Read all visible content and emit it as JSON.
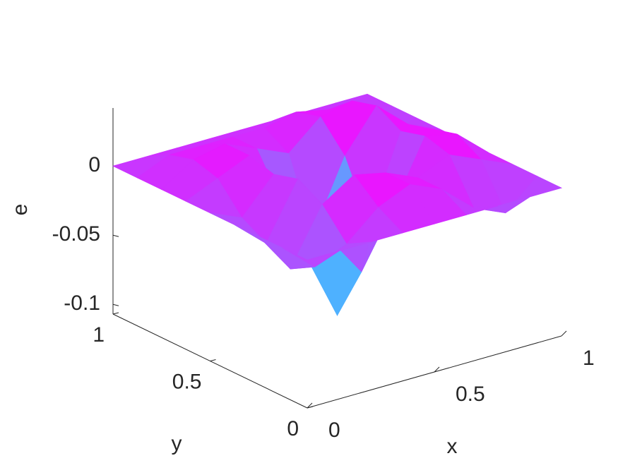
{
  "chart_data": {
    "type": "surface",
    "xlabel": "x",
    "ylabel": "y",
    "zlabel": "e",
    "x": [
      0,
      0.125,
      0.25,
      0.375,
      0.5,
      0.625,
      0.75,
      0.875,
      1
    ],
    "y": [
      0,
      0.125,
      0.25,
      0.375,
      0.5,
      0.625,
      0.75,
      0.875,
      1
    ],
    "z": [
      [
        0,
        0,
        0,
        0,
        0,
        0,
        0,
        0,
        0
      ],
      [
        0,
        -0.02,
        -0.01,
        0.01,
        0.02,
        0.01,
        -0.01,
        -0.02,
        0
      ],
      [
        0,
        -0.03,
        0.01,
        0.025,
        0.02,
        0.01,
        0.02,
        0.01,
        0
      ],
      [
        0,
        -0.02,
        0.02,
        -0.03,
        -0.06,
        -0.02,
        0.025,
        0.02,
        0
      ],
      [
        0,
        -0.01,
        0.015,
        -0.05,
        -0.1,
        -0.04,
        0.02,
        0.015,
        0
      ],
      [
        0,
        0.01,
        0.02,
        -0.02,
        -0.05,
        0,
        0.03,
        0.01,
        0
      ],
      [
        0,
        0.015,
        0.02,
        0.01,
        0,
        0.02,
        0.025,
        -0.01,
        0
      ],
      [
        0,
        0.01,
        0.01,
        0.01,
        0.01,
        0.015,
        0.01,
        0,
        0
      ],
      [
        0,
        0,
        0,
        0,
        0,
        0,
        0,
        0,
        0
      ]
    ],
    "colormap": "cool",
    "xlim": [
      0,
      1
    ],
    "ylim": [
      0,
      1
    ],
    "zlim": [
      -0.107,
      0.042
    ],
    "xticks": [
      0,
      0.5,
      1
    ],
    "yticks": [
      0,
      0.5,
      1
    ],
    "zticks": [
      -0.1,
      -0.05,
      0
    ]
  }
}
